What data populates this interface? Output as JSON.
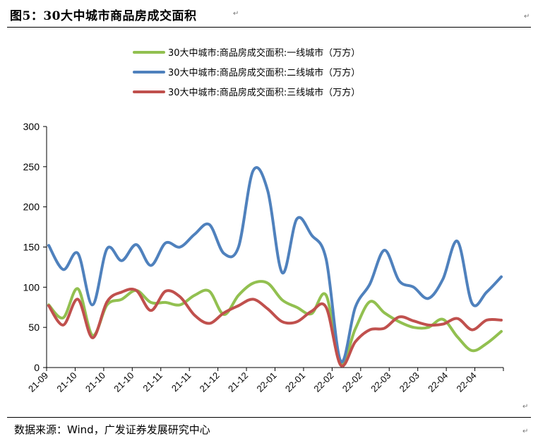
{
  "figure": {
    "title": "图5：30大中城市商品房成交面积",
    "source": "数据来源：Wind，广发证券发展研究中心"
  },
  "chart_data": {
    "type": "line",
    "title": "",
    "xlabel": "",
    "ylabel": "",
    "ylim": [
      0,
      300
    ],
    "yticks": [
      0,
      50,
      100,
      150,
      200,
      250,
      300
    ],
    "xtick_labels": [
      "21-09",
      "21-10",
      "21-10",
      "21-10",
      "21-11",
      "21-11",
      "21-12",
      "21-12",
      "22-01",
      "22-01",
      "22-02",
      "22-02",
      "22-03",
      "22-03",
      "22-04",
      "22-04"
    ],
    "legend_position": "top",
    "grid": false,
    "series": [
      {
        "name": "30大中城市:商品房成交面积:一线城市（万方）",
        "color": "#92c050",
        "values": [
          78,
          62,
          98,
          40,
          78,
          85,
          96,
          81,
          81,
          78,
          90,
          95,
          66,
          90,
          105,
          105,
          84,
          75,
          67,
          90,
          5,
          48,
          82,
          68,
          57,
          50,
          50,
          60,
          38,
          21,
          30,
          45
        ]
      },
      {
        "name": "30大中城市:商品房成交面积:二线城市（万方）",
        "color": "#4f81bd",
        "values": [
          152,
          122,
          142,
          78,
          148,
          133,
          153,
          127,
          155,
          150,
          166,
          178,
          142,
          150,
          245,
          220,
          118,
          185,
          165,
          135,
          8,
          75,
          104,
          146,
          108,
          100,
          86,
          110,
          157,
          80,
          94,
          113
        ]
      },
      {
        "name": "30大中城市:商品房成交面积:三线城市（万方）",
        "color": "#c0504d",
        "values": [
          77,
          53,
          85,
          37,
          82,
          94,
          96,
          71,
          95,
          88,
          65,
          55,
          68,
          77,
          85,
          73,
          57,
          57,
          70,
          75,
          3,
          32,
          47,
          49,
          63,
          58,
          53,
          54,
          61,
          47,
          59,
          59
        ]
      }
    ]
  }
}
